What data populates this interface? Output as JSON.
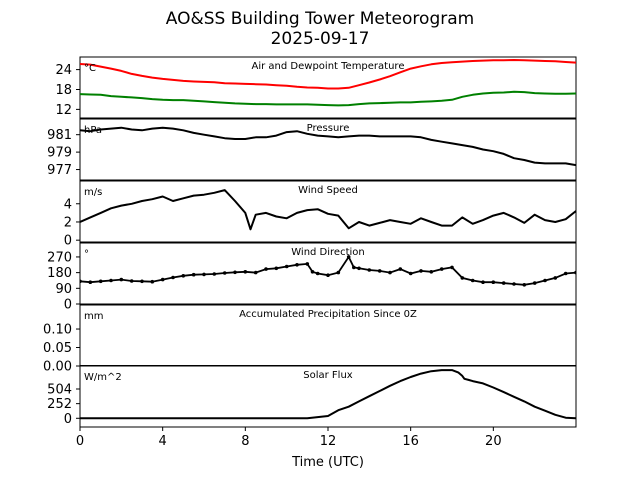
{
  "chart_data": {
    "title": "AO&SS Building Tower Meteorogram",
    "subtitle": "2025-09-17",
    "xlabel": "Time (UTC)",
    "xlim": [
      0,
      24
    ],
    "xticks": [
      0,
      4,
      8,
      12,
      16,
      20
    ],
    "panels": [
      {
        "key": "temp",
        "type": "line",
        "title": "Air and Dewpoint Temperature",
        "unit": "°C",
        "ylim": [
          9.4,
          27.8
        ],
        "yticks": [
          12,
          18,
          24
        ],
        "series": [
          {
            "name": "Air Temperature",
            "color": "#ff0000",
            "x": [
              0,
              0.5,
              1,
              1.5,
              2,
              2.5,
              3,
              3.5,
              4,
              4.5,
              5,
              5.5,
              6,
              6.5,
              7,
              7.5,
              8,
              8.5,
              9,
              9.5,
              10,
              10.5,
              11,
              11.5,
              12,
              12.5,
              13,
              13.5,
              14,
              14.5,
              15,
              15.5,
              16,
              16.5,
              17,
              17.5,
              18,
              18.5,
              19,
              19.5,
              20,
              20.5,
              21,
              21.5,
              22,
              22.5,
              23,
              23.5,
              24
            ],
            "values": [
              25.7,
              25.5,
              24.9,
              24.3,
              23.6,
              22.7,
              22.1,
              21.6,
              21.2,
              20.9,
              20.6,
              20.4,
              20.3,
              20.2,
              19.9,
              19.8,
              19.7,
              19.6,
              19.5,
              19.3,
              19.1,
              18.8,
              18.6,
              18.5,
              18.3,
              18.3,
              18.5,
              19.3,
              20.1,
              21.0,
              22.0,
              23.2,
              24.3,
              25.0,
              25.6,
              26.0,
              26.2,
              26.4,
              26.6,
              26.7,
              26.8,
              26.8,
              26.9,
              26.8,
              26.7,
              26.6,
              26.5,
              26.3,
              26.1
            ]
          },
          {
            "name": "Dewpoint Temperature",
            "color": "#008000",
            "x": [
              0,
              0.5,
              1,
              1.5,
              2,
              2.5,
              3,
              3.5,
              4,
              4.5,
              5,
              5.5,
              6,
              6.5,
              7,
              7.5,
              8,
              8.5,
              9,
              9.5,
              10,
              10.5,
              11,
              11.5,
              12,
              12.5,
              13,
              13.5,
              14,
              14.5,
              15,
              15.5,
              16,
              16.5,
              17,
              17.5,
              18,
              18.5,
              19,
              19.5,
              20,
              20.5,
              21,
              21.5,
              22,
              22.5,
              23,
              23.5,
              24
            ],
            "values": [
              16.6,
              16.5,
              16.4,
              16.0,
              15.8,
              15.6,
              15.4,
              15.1,
              14.9,
              14.8,
              14.8,
              14.6,
              14.4,
              14.2,
              14.0,
              13.8,
              13.7,
              13.6,
              13.6,
              13.5,
              13.5,
              13.5,
              13.5,
              13.4,
              13.3,
              13.2,
              13.3,
              13.6,
              13.8,
              13.9,
              14.0,
              14.1,
              14.1,
              14.3,
              14.4,
              14.6,
              14.9,
              15.8,
              16.4,
              16.8,
              17.0,
              17.1,
              17.3,
              17.2,
              16.9,
              16.8,
              16.7,
              16.7,
              16.8
            ]
          }
        ]
      },
      {
        "key": "pressure",
        "type": "line",
        "title": "Pressure",
        "unit": "hPa",
        "ylim": [
          975.8,
          982.8
        ],
        "yticks": [
          977,
          979,
          981
        ],
        "series": [
          {
            "name": "Pressure",
            "color": "#000000",
            "x": [
              0,
              0.5,
              1,
              1.5,
              2,
              2.5,
              3,
              3.5,
              4,
              4.5,
              5,
              5.5,
              6,
              6.5,
              7,
              7.5,
              8,
              8.5,
              9,
              9.5,
              10,
              10.5,
              11,
              11.5,
              12,
              12.5,
              13,
              13.5,
              14,
              14.5,
              15,
              15.5,
              16,
              16.5,
              17,
              17.5,
              18,
              18.5,
              19,
              19.5,
              20,
              20.5,
              21,
              21.5,
              22,
              22.5,
              23,
              23.5,
              24
            ],
            "values": [
              981.5,
              981.4,
              981.6,
              981.7,
              981.8,
              981.6,
              981.5,
              981.7,
              981.8,
              981.7,
              981.5,
              981.2,
              981.0,
              980.8,
              980.6,
              980.5,
              980.5,
              980.7,
              980.7,
              980.9,
              981.3,
              981.4,
              981.1,
              980.9,
              980.8,
              980.7,
              980.8,
              980.9,
              980.9,
              980.8,
              980.8,
              980.8,
              980.8,
              980.7,
              980.4,
              980.2,
              980.0,
              979.8,
              979.6,
              979.3,
              979.1,
              978.8,
              978.3,
              978.1,
              977.8,
              977.7,
              977.7,
              977.7,
              977.5
            ]
          }
        ]
      },
      {
        "key": "wind_speed",
        "type": "line",
        "title": "Wind Speed",
        "unit": "m/s",
        "ylim": [
          -0.2,
          6.5
        ],
        "yticks": [
          0,
          2,
          4
        ],
        "series": [
          {
            "name": "Wind Speed",
            "color": "#000000",
            "x": [
              0,
              0.5,
              1,
              1.5,
              2,
              2.5,
              3,
              3.5,
              4,
              4.5,
              5,
              5.5,
              6,
              6.5,
              7,
              7.5,
              8,
              8.25,
              8.5,
              9,
              9.5,
              10,
              10.5,
              11,
              11.5,
              12,
              12.5,
              13,
              13.5,
              14,
              14.5,
              15,
              15.5,
              16,
              16.5,
              17,
              17.5,
              18,
              18.5,
              19,
              19.5,
              20,
              20.5,
              21,
              21.5,
              22,
              22.5,
              23,
              23.5,
              24
            ],
            "values": [
              2.0,
              2.5,
              3.0,
              3.5,
              3.8,
              4.0,
              4.3,
              4.5,
              4.8,
              4.3,
              4.6,
              4.9,
              5.0,
              5.2,
              5.5,
              4.3,
              3.0,
              1.2,
              2.8,
              3.0,
              2.6,
              2.4,
              3.0,
              3.3,
              3.4,
              2.9,
              2.7,
              1.3,
              2.0,
              1.6,
              1.9,
              2.2,
              2.0,
              1.8,
              2.4,
              2.0,
              1.6,
              1.6,
              2.5,
              1.8,
              2.2,
              2.7,
              3.0,
              2.5,
              1.9,
              2.8,
              2.2,
              2.0,
              2.3,
              3.2
            ]
          }
        ]
      },
      {
        "key": "wind_direction",
        "type": "scatter",
        "title": "Wind Direction",
        "unit": "°",
        "ylim": [
          0,
          350
        ],
        "yticks": [
          0,
          90,
          180,
          270
        ],
        "series": [
          {
            "name": "Wind Direction",
            "color": "#000000",
            "x": [
              0,
              0.5,
              1,
              1.5,
              2,
              2.5,
              3,
              3.5,
              4,
              4.5,
              5,
              5.5,
              6,
              6.5,
              7,
              7.5,
              8,
              8.5,
              9,
              9.5,
              10,
              10.5,
              11,
              11.25,
              11.5,
              12,
              12.5,
              13,
              13.25,
              13.5,
              14,
              14.5,
              15,
              15.5,
              16,
              16.5,
              17,
              17.5,
              18,
              18.5,
              19,
              19.5,
              20,
              20.5,
              21,
              21.5,
              22,
              22.5,
              23,
              23.5,
              24
            ],
            "values": [
              130,
              125,
              130,
              135,
              140,
              132,
              130,
              128,
              140,
              152,
              162,
              168,
              170,
              172,
              178,
              182,
              185,
              180,
              200,
              205,
              215,
              225,
              230,
              185,
              175,
              165,
              180,
              270,
              210,
              205,
              195,
              190,
              180,
              200,
              175,
              190,
              185,
              200,
              210,
              150,
              135,
              125,
              125,
              120,
              115,
              110,
              120,
              135,
              150,
              175,
              180
            ]
          }
        ]
      },
      {
        "key": "precipitation",
        "type": "line",
        "title": "Accumulated Precipitation Since 0Z",
        "unit": "mm",
        "ylim": [
          0,
          0.165
        ],
        "yticks": [
          0.0,
          0.05,
          0.1
        ],
        "series": [
          {
            "name": "Accumulated Precipitation",
            "color": "#000000",
            "x": [
              0,
              24
            ],
            "values": [
              0.0,
              0.0
            ]
          }
        ]
      },
      {
        "key": "solar",
        "type": "line",
        "title": "Solar Flux",
        "unit": "W/m^2",
        "ylim": [
          -150,
          900
        ],
        "yticks": [
          0,
          252,
          504
        ],
        "series": [
          {
            "name": "Solar Flux",
            "color": "#000000",
            "x": [
              0,
              6,
              11,
              12,
              12.5,
              13,
              13.5,
              14,
              14.5,
              15,
              15.5,
              16,
              16.5,
              17,
              17.5,
              18,
              18.3,
              18.5,
              18.6,
              18.8,
              19,
              19.5,
              20,
              20.5,
              21,
              21.5,
              22,
              22.5,
              23,
              23.5,
              24
            ],
            "values": [
              0,
              0,
              0,
              40,
              140,
              200,
              290,
              380,
              470,
              560,
              640,
              710,
              770,
              810,
              830,
              830,
              790,
              730,
              680,
              660,
              640,
              600,
              530,
              450,
              370,
              290,
              200,
              130,
              60,
              10,
              0
            ]
          }
        ]
      }
    ]
  }
}
